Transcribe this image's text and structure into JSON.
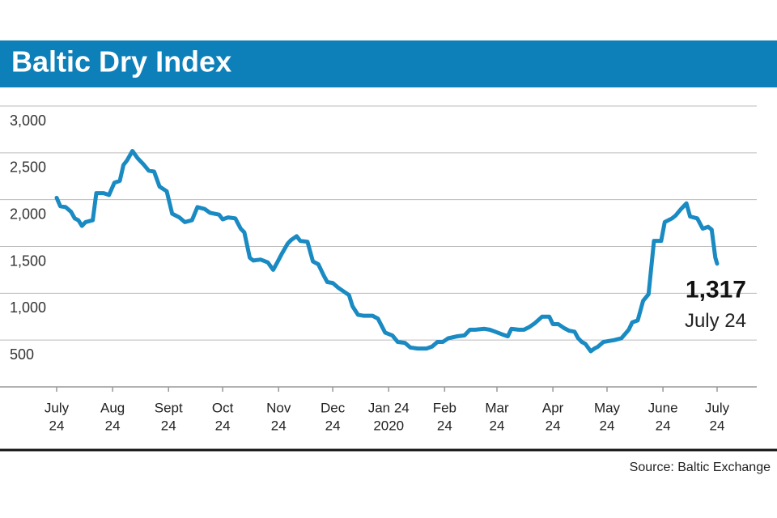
{
  "chart_data": {
    "type": "line",
    "title": "Baltic Dry Index",
    "source": "Source: Baltic Exchange",
    "color": "#1a8ac2",
    "grid": true,
    "xlim": [
      0,
      366
    ],
    "ylim": [
      0,
      3000
    ],
    "yticks": [
      {
        "value": 500,
        "label": "500"
      },
      {
        "value": 1000,
        "label": "1,000"
      },
      {
        "value": 1500,
        "label": "1,500"
      },
      {
        "value": 2000,
        "label": "2,000"
      },
      {
        "value": 2500,
        "label": "2,500"
      },
      {
        "value": 3000,
        "label": "3,000"
      }
    ],
    "xticks": [
      {
        "value": 0,
        "label": [
          "July",
          "24"
        ]
      },
      {
        "value": 31,
        "label": [
          "Aug",
          "24"
        ]
      },
      {
        "value": 62,
        "label": [
          "Sept",
          "24"
        ]
      },
      {
        "value": 92,
        "label": [
          "Oct",
          "24"
        ]
      },
      {
        "value": 123,
        "label": [
          "Nov",
          "24"
        ]
      },
      {
        "value": 153,
        "label": [
          "Dec",
          "24"
        ]
      },
      {
        "value": 184,
        "label": [
          "Jan 24",
          "2020"
        ]
      },
      {
        "value": 215,
        "label": [
          "Feb",
          "24"
        ]
      },
      {
        "value": 244,
        "label": [
          "Mar",
          "24"
        ]
      },
      {
        "value": 275,
        "label": [
          "Apr",
          "24"
        ]
      },
      {
        "value": 305,
        "label": [
          "May",
          "24"
        ]
      },
      {
        "value": 336,
        "label": [
          "June",
          "24"
        ]
      },
      {
        "value": 366,
        "label": [
          "July",
          "24"
        ]
      }
    ],
    "x": [
      0,
      2,
      5,
      8,
      10,
      12,
      14,
      16,
      20,
      22,
      26,
      29,
      32,
      35,
      37,
      39,
      42,
      45,
      48,
      51,
      54,
      57,
      61,
      64,
      68,
      71,
      75,
      78,
      82,
      85,
      90,
      92,
      95,
      99,
      102,
      104,
      107,
      109,
      113,
      117,
      120,
      122,
      125,
      128,
      130,
      133,
      135,
      139,
      142,
      145,
      148,
      150,
      153,
      156,
      159,
      162,
      164,
      167,
      170,
      175,
      178,
      182,
      186,
      189,
      193,
      196,
      200,
      205,
      208,
      211,
      214,
      217,
      222,
      226,
      229,
      232,
      237,
      240,
      243,
      247,
      250,
      252,
      256,
      259,
      262,
      265,
      269,
      273,
      275,
      278,
      281,
      284,
      287,
      289,
      291,
      293,
      296,
      298,
      300,
      303,
      306,
      309,
      313,
      317,
      319,
      322,
      325,
      328,
      331,
      335,
      337,
      341,
      343,
      346,
      349,
      351,
      355,
      358,
      361,
      363,
      365,
      366
    ],
    "values": [
      2020,
      1930,
      1920,
      1870,
      1800,
      1780,
      1720,
      1760,
      1780,
      2070,
      2070,
      2050,
      2180,
      2200,
      2370,
      2420,
      2520,
      2440,
      2380,
      2310,
      2300,
      2140,
      2090,
      1850,
      1810,
      1760,
      1780,
      1920,
      1900,
      1860,
      1840,
      1790,
      1810,
      1800,
      1690,
      1650,
      1380,
      1350,
      1360,
      1330,
      1250,
      1320,
      1430,
      1530,
      1570,
      1610,
      1560,
      1550,
      1340,
      1310,
      1190,
      1120,
      1110,
      1060,
      1020,
      980,
      860,
      770,
      760,
      760,
      730,
      580,
      550,
      480,
      470,
      420,
      410,
      410,
      430,
      480,
      480,
      520,
      540,
      550,
      610,
      610,
      620,
      610,
      590,
      560,
      540,
      620,
      610,
      610,
      640,
      680,
      750,
      750,
      670,
      670,
      630,
      600,
      590,
      520,
      480,
      460,
      380,
      410,
      430,
      480,
      490,
      500,
      520,
      610,
      690,
      710,
      920,
      990,
      1560,
      1560,
      1760,
      1800,
      1830,
      1900,
      1960,
      1820,
      1800,
      1690,
      1710,
      1680,
      1380,
      1317
    ],
    "annotation": {
      "value": 1317,
      "label": "1,317",
      "date": "July 24"
    }
  }
}
